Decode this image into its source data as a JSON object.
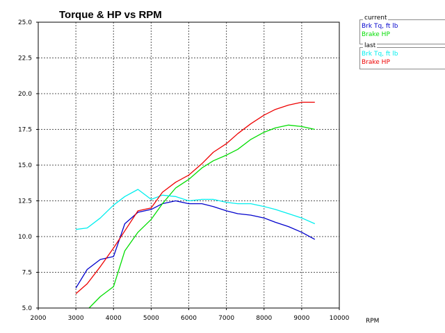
{
  "chart_data": {
    "type": "line",
    "title": "Torque & HP vs RPM",
    "xlabel": "RPM",
    "ylabel": "",
    "xlim": [
      2000,
      10000
    ],
    "ylim": [
      5.0,
      25.0
    ],
    "x_ticks": [
      "2000",
      "3000",
      "4000",
      "5000",
      "6000",
      "7000",
      "8000",
      "9000",
      "10000"
    ],
    "y_ticks": [
      "5.0",
      "7.5",
      "10.0",
      "12.5",
      "15.0",
      "17.5",
      "20.0",
      "22.5",
      "25.0"
    ],
    "grid": true,
    "legend_position": "right",
    "legend_groups": [
      {
        "caption": "current",
        "entries": [
          {
            "label": "Brk Tq, ft lb",
            "color": "#0000cc"
          },
          {
            "label": "Brake HP",
            "color": "#00dd00"
          }
        ]
      },
      {
        "caption": "last",
        "entries": [
          {
            "label": "Brk Tq, ft lb",
            "color": "#00eeee"
          },
          {
            "label": "Brake HP",
            "color": "#ee0000"
          }
        ]
      }
    ],
    "series": [
      {
        "color": "#0000cc",
        "x": [
          3000,
          3300,
          3650,
          4000,
          4300,
          4650,
          5000,
          5300,
          5650,
          6000,
          6350,
          6650,
          7000,
          7300,
          7650,
          8000,
          8300,
          8650,
          9000,
          9350
        ],
        "y": [
          6.4,
          7.7,
          8.4,
          8.6,
          10.9,
          11.7,
          11.9,
          12.3,
          12.5,
          12.3,
          12.3,
          12.1,
          11.8,
          11.6,
          11.5,
          11.3,
          11.0,
          10.7,
          10.3,
          9.8
        ]
      },
      {
        "color": "#00dd00",
        "x": [
          3350,
          3650,
          4000,
          4300,
          4650,
          5000,
          5300,
          5650,
          6000,
          6350,
          6650,
          7000,
          7300,
          7650,
          8000,
          8300,
          8650,
          9000,
          9350
        ],
        "y": [
          5.0,
          5.8,
          6.5,
          9.0,
          10.3,
          11.2,
          12.3,
          13.4,
          14.0,
          14.8,
          15.3,
          15.7,
          16.1,
          16.8,
          17.3,
          17.6,
          17.8,
          17.7,
          17.5
        ]
      },
      {
        "color": "#00eeee",
        "x": [
          3000,
          3300,
          3650,
          4000,
          4300,
          4650,
          5000,
          5300,
          5650,
          6000,
          6350,
          6650,
          7000,
          7300,
          7650,
          8000,
          8300,
          8650,
          9000,
          9350
        ],
        "y": [
          10.5,
          10.6,
          11.3,
          12.2,
          12.8,
          13.3,
          12.6,
          12.9,
          12.8,
          12.5,
          12.6,
          12.6,
          12.4,
          12.3,
          12.3,
          12.1,
          11.9,
          11.6,
          11.3,
          10.9
        ]
      },
      {
        "color": "#ee0000",
        "x": [
          3000,
          3300,
          3650,
          4000,
          4300,
          4650,
          5000,
          5300,
          5650,
          6000,
          6350,
          6650,
          7000,
          7300,
          7650,
          8000,
          8300,
          8650,
          9000,
          9350
        ],
        "y": [
          6.0,
          6.7,
          7.9,
          9.2,
          10.4,
          11.8,
          12.0,
          13.1,
          13.8,
          14.3,
          15.1,
          15.9,
          16.5,
          17.2,
          17.9,
          18.5,
          18.9,
          19.2,
          19.4,
          19.4
        ]
      }
    ]
  }
}
